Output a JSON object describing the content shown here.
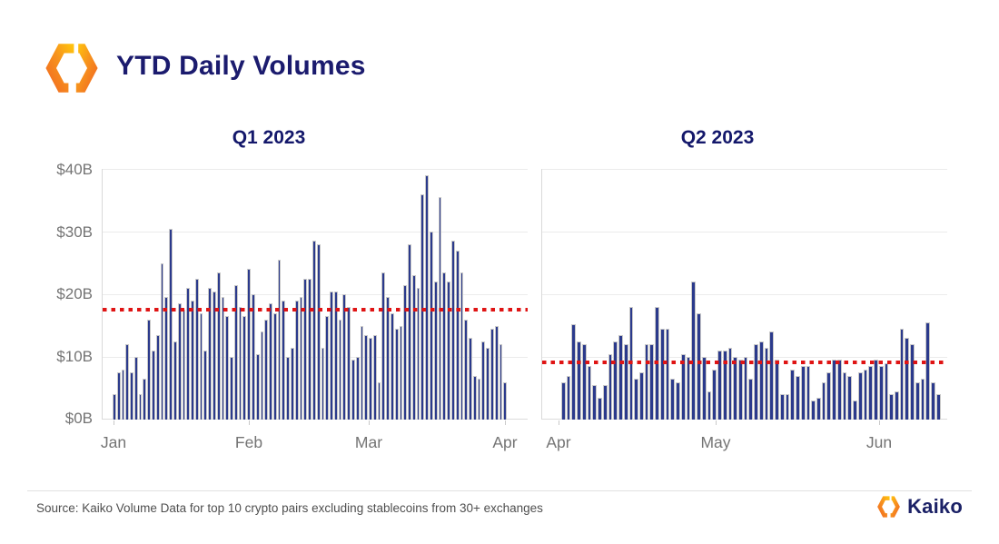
{
  "header": {
    "title": "YTD Daily Volumes"
  },
  "icons": {
    "kaiko_logo": "kaiko-hexagon-logo-icon",
    "orange_start": "#f26f21",
    "orange_mid": "#f7941d",
    "orange_end": "#ffc20e"
  },
  "colors": {
    "bar": "#2b3a8c",
    "bar_outline": "#c9c9c9",
    "average_line": "#df1414",
    "gridline": "#ebebeb",
    "axis_text": "#747474",
    "title_navy": "#1b1b6e"
  },
  "footer": {
    "source": "Source: Kaiko Volume Data for top 10 crypto pairs excluding stablecoins from 30+ exchanges",
    "brand": "Kaiko"
  },
  "chart_data": [
    {
      "type": "bar",
      "title": "Q1 2023",
      "ylabel": "",
      "ylim": [
        0,
        40
      ],
      "grid": true,
      "y_tick_labels": [
        "$40B",
        "$30B",
        "$20B",
        "$10B",
        "$0B"
      ],
      "x_tick_labels": [
        "Jan",
        "Feb",
        "Mar",
        "Apr"
      ],
      "average_line_value": 17.5,
      "units": "billions USD per day",
      "values": [
        4,
        7.5,
        8,
        12,
        7.5,
        10,
        4,
        6.5,
        16,
        11,
        13.5,
        25,
        19.5,
        30.5,
        12.5,
        18.5,
        17.5,
        21,
        19,
        22.5,
        17,
        11,
        21,
        20.5,
        23.5,
        19.5,
        16.5,
        10,
        21.5,
        18,
        16.5,
        24,
        20,
        10.5,
        14,
        16,
        18.5,
        17,
        25.5,
        19,
        10,
        11.5,
        19,
        19.5,
        22.5,
        22.5,
        28.5,
        28,
        11.5,
        16.5,
        20.5,
        20.5,
        16,
        20,
        18,
        9.5,
        10,
        15,
        13.5,
        13,
        13.5,
        6,
        23.5,
        19.5,
        17,
        14.5,
        15,
        21.5,
        28,
        23,
        21,
        36,
        39,
        30,
        22,
        35.5,
        23.5,
        22,
        28.5,
        27,
        23.5,
        16,
        13,
        7,
        6.5,
        12.5,
        11.5,
        14.5,
        15,
        12,
        6
      ]
    },
    {
      "type": "bar",
      "title": "Q2 2023",
      "ylabel": "",
      "ylim": [
        0,
        40
      ],
      "grid": true,
      "y_tick_labels": [
        "$40B",
        "$30B",
        "$20B",
        "$10B",
        "$0B"
      ],
      "x_tick_labels": [
        "Apr",
        "May",
        "Jun"
      ],
      "average_line_value": 9.2,
      "units": "billions USD per day",
      "values": [
        6,
        7,
        15.2,
        12.5,
        12,
        8.5,
        5.5,
        3.5,
        5.5,
        10.5,
        12.5,
        13.5,
        12,
        18,
        6.5,
        7.5,
        12,
        12,
        18,
        14.5,
        14.5,
        6.5,
        6,
        10.5,
        10,
        22,
        17,
        10,
        4.5,
        8,
        11,
        11,
        11.5,
        10,
        9.5,
        10,
        6.5,
        12,
        12.5,
        11.5,
        14,
        9.5,
        4,
        4,
        8,
        7,
        8.5,
        8.5,
        3,
        3.5,
        6,
        7.5,
        9.5,
        9.5,
        7.5,
        7,
        3,
        7.5,
        8,
        8.5,
        9.5,
        8.5,
        9,
        4,
        4.5,
        14.5,
        13,
        12,
        6,
        6.5,
        15.5,
        6,
        4
      ]
    }
  ]
}
